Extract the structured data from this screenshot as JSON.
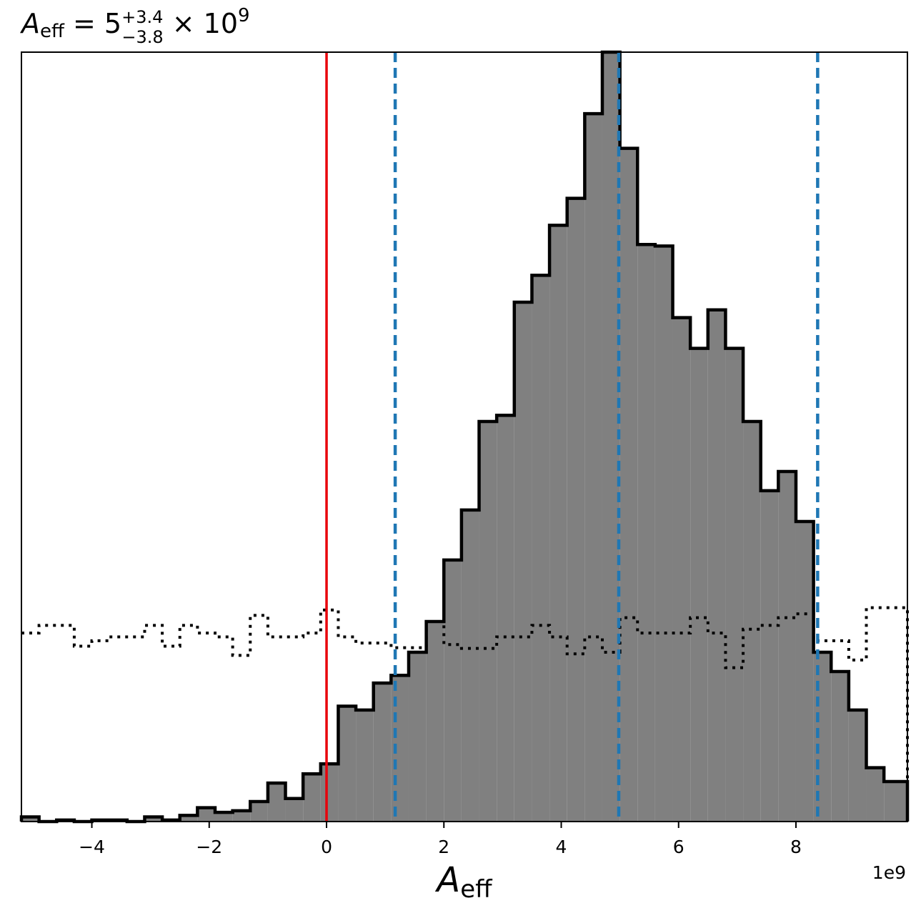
{
  "chart_data": {
    "type": "histogram",
    "title": {
      "symbol": "A",
      "symbol_sub": "eff",
      "eq": " = 5",
      "sup": "+3.4",
      "sub": "−3.8",
      "times": " × 10",
      "exp": "9"
    },
    "xlabel": {
      "symbol": "A",
      "sub": "eff"
    },
    "x_offset_label": "1e9",
    "xlim": [
      -5.2,
      9.9
    ],
    "ylim": [
      0,
      1.0
    ],
    "x_unit_scale": 1000000000.0,
    "xticks": [
      -4,
      -2,
      0,
      2,
      4,
      6,
      8
    ],
    "xtick_labels": [
      "−4",
      "−2",
      "0",
      "2",
      "4",
      "6",
      "8"
    ],
    "bin_edges": [
      -5.2,
      -4.9,
      -4.6,
      -4.3,
      -4.0,
      -3.7,
      -3.4,
      -3.1,
      -2.8,
      -2.5,
      -2.2,
      -1.9,
      -1.6,
      -1.3,
      -1.0,
      -0.7,
      -0.4,
      -0.1,
      0.2,
      0.5,
      0.8,
      1.1,
      1.4,
      1.7,
      2.0,
      2.3,
      2.6,
      2.9,
      3.2,
      3.5,
      3.8,
      4.1,
      4.4,
      4.7,
      5.0,
      5.3,
      5.6,
      5.9,
      6.2,
      6.5,
      6.8,
      7.1,
      7.4,
      7.7,
      8.0,
      8.3,
      8.6,
      8.9,
      9.2,
      9.5,
      9.9
    ],
    "posterior_counts": [
      0.006,
      0.0,
      0.002,
      0.0,
      0.002,
      0.002,
      0.0,
      0.006,
      0.002,
      0.008,
      0.018,
      0.012,
      0.014,
      0.026,
      0.05,
      0.03,
      0.062,
      0.075,
      0.15,
      0.145,
      0.18,
      0.19,
      0.22,
      0.26,
      0.34,
      0.405,
      0.52,
      0.528,
      0.675,
      0.71,
      0.775,
      0.81,
      0.92,
      1.0,
      0.875,
      0.75,
      0.748,
      0.655,
      0.615,
      0.665,
      0.615,
      0.52,
      0.43,
      0.455,
      0.39,
      0.22,
      0.195,
      0.145,
      0.07,
      0.052
    ],
    "prior_counts": [
      0.245,
      0.255,
      0.255,
      0.228,
      0.235,
      0.24,
      0.24,
      0.255,
      0.228,
      0.255,
      0.245,
      0.24,
      0.216,
      0.268,
      0.24,
      0.24,
      0.245,
      0.275,
      0.24,
      0.232,
      0.232,
      0.226,
      0.226,
      0.26,
      0.23,
      0.225,
      0.225,
      0.24,
      0.24,
      0.255,
      0.24,
      0.218,
      0.24,
      0.22,
      0.265,
      0.245,
      0.245,
      0.245,
      0.265,
      0.245,
      0.2,
      0.25,
      0.255,
      0.265,
      0.27,
      0.235,
      0.235,
      0.21,
      0.278,
      0.278
    ],
    "vlines": [
      {
        "x": 0.0,
        "color": "#e8000b",
        "style": "solid"
      },
      {
        "x": 1.17,
        "color": "#1f77b4",
        "style": "dashed"
      },
      {
        "x": 4.98,
        "color": "#1f77b4",
        "style": "dashed"
      },
      {
        "x": 8.37,
        "color": "#1f77b4",
        "style": "dashed"
      }
    ],
    "fill_color": "#808080",
    "edge_color": "#000000",
    "prior_style": "dotted"
  }
}
